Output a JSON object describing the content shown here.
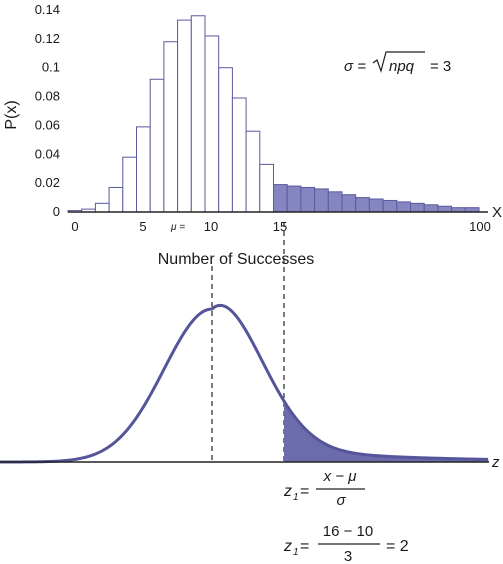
{
  "chart_data": [
    {
      "type": "bar",
      "ylabel": "P(x)",
      "xlabel": "Number of Successes",
      "x_axis_letter": "X",
      "yticks": [
        "0",
        "0.02",
        "0.04",
        "0.06",
        "0.08",
        "0.1",
        "0.12",
        "0.14"
      ],
      "ylim": [
        0,
        0.14
      ],
      "xticks": [
        "0",
        "5",
        "10",
        "15",
        "100"
      ],
      "mu_label": "μ =",
      "sigma_formula": {
        "lhs": "σ =",
        "radicand": "npq",
        "rhs": "= 3"
      },
      "x": [
        1,
        2,
        3,
        4,
        5,
        6,
        7,
        8,
        9,
        10,
        11,
        12,
        13,
        14,
        15,
        16,
        17,
        18,
        19,
        20,
        21,
        22,
        23,
        24,
        25,
        26,
        27,
        28,
        29,
        30
      ],
      "values": [
        0.001,
        0.002,
        0.006,
        0.017,
        0.038,
        0.059,
        0.092,
        0.118,
        0.133,
        0.136,
        0.122,
        0.1,
        0.079,
        0.056,
        0.033,
        0.019,
        0.018,
        0.017,
        0.016,
        0.014,
        0.012,
        0.01,
        0.009,
        0.008,
        0.007,
        0.006,
        0.005,
        0.004,
        0.003,
        0.003
      ],
      "shaded_from_x": 16,
      "colors": {
        "outline": "#5a5aa0",
        "fill": "#8585c0"
      }
    },
    {
      "type": "area",
      "axis_letter": "z",
      "description_formula_1": {
        "lhs": "z",
        "sub": "1",
        "eq": "=",
        "numerator": "x − μ",
        "denominator": "σ"
      },
      "description_formula_2": {
        "lhs": "z",
        "sub": "1",
        "eq": "=",
        "numerator": "16 − 10",
        "denominator": "3",
        "rhs": "= 2"
      },
      "colors": {
        "curve": "#55559a",
        "fill": "#6c6cad"
      }
    }
  ]
}
